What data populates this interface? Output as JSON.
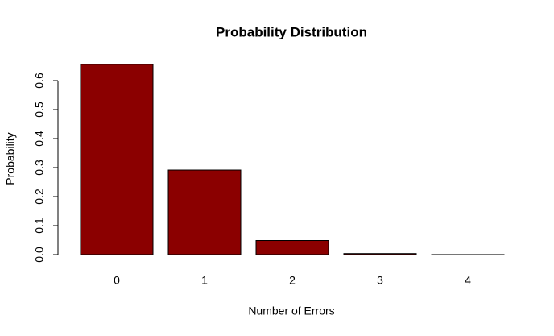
{
  "chart_data": {
    "type": "bar",
    "title": "Probability Distribution",
    "x_label": "Number of Errors",
    "y_label": "Probability",
    "categories": [
      "0",
      "1",
      "2",
      "3",
      "4"
    ],
    "values": [
      0.6561,
      0.2916,
      0.0486,
      0.0036,
      0.0001
    ],
    "color": "#8b0000",
    "ylim": [
      0,
      0.66
    ],
    "yticks": [
      {
        "value": 0,
        "label": "0.0"
      },
      0.1,
      0.2,
      0.3,
      0.4,
      0.5,
      0.6
    ]
  }
}
